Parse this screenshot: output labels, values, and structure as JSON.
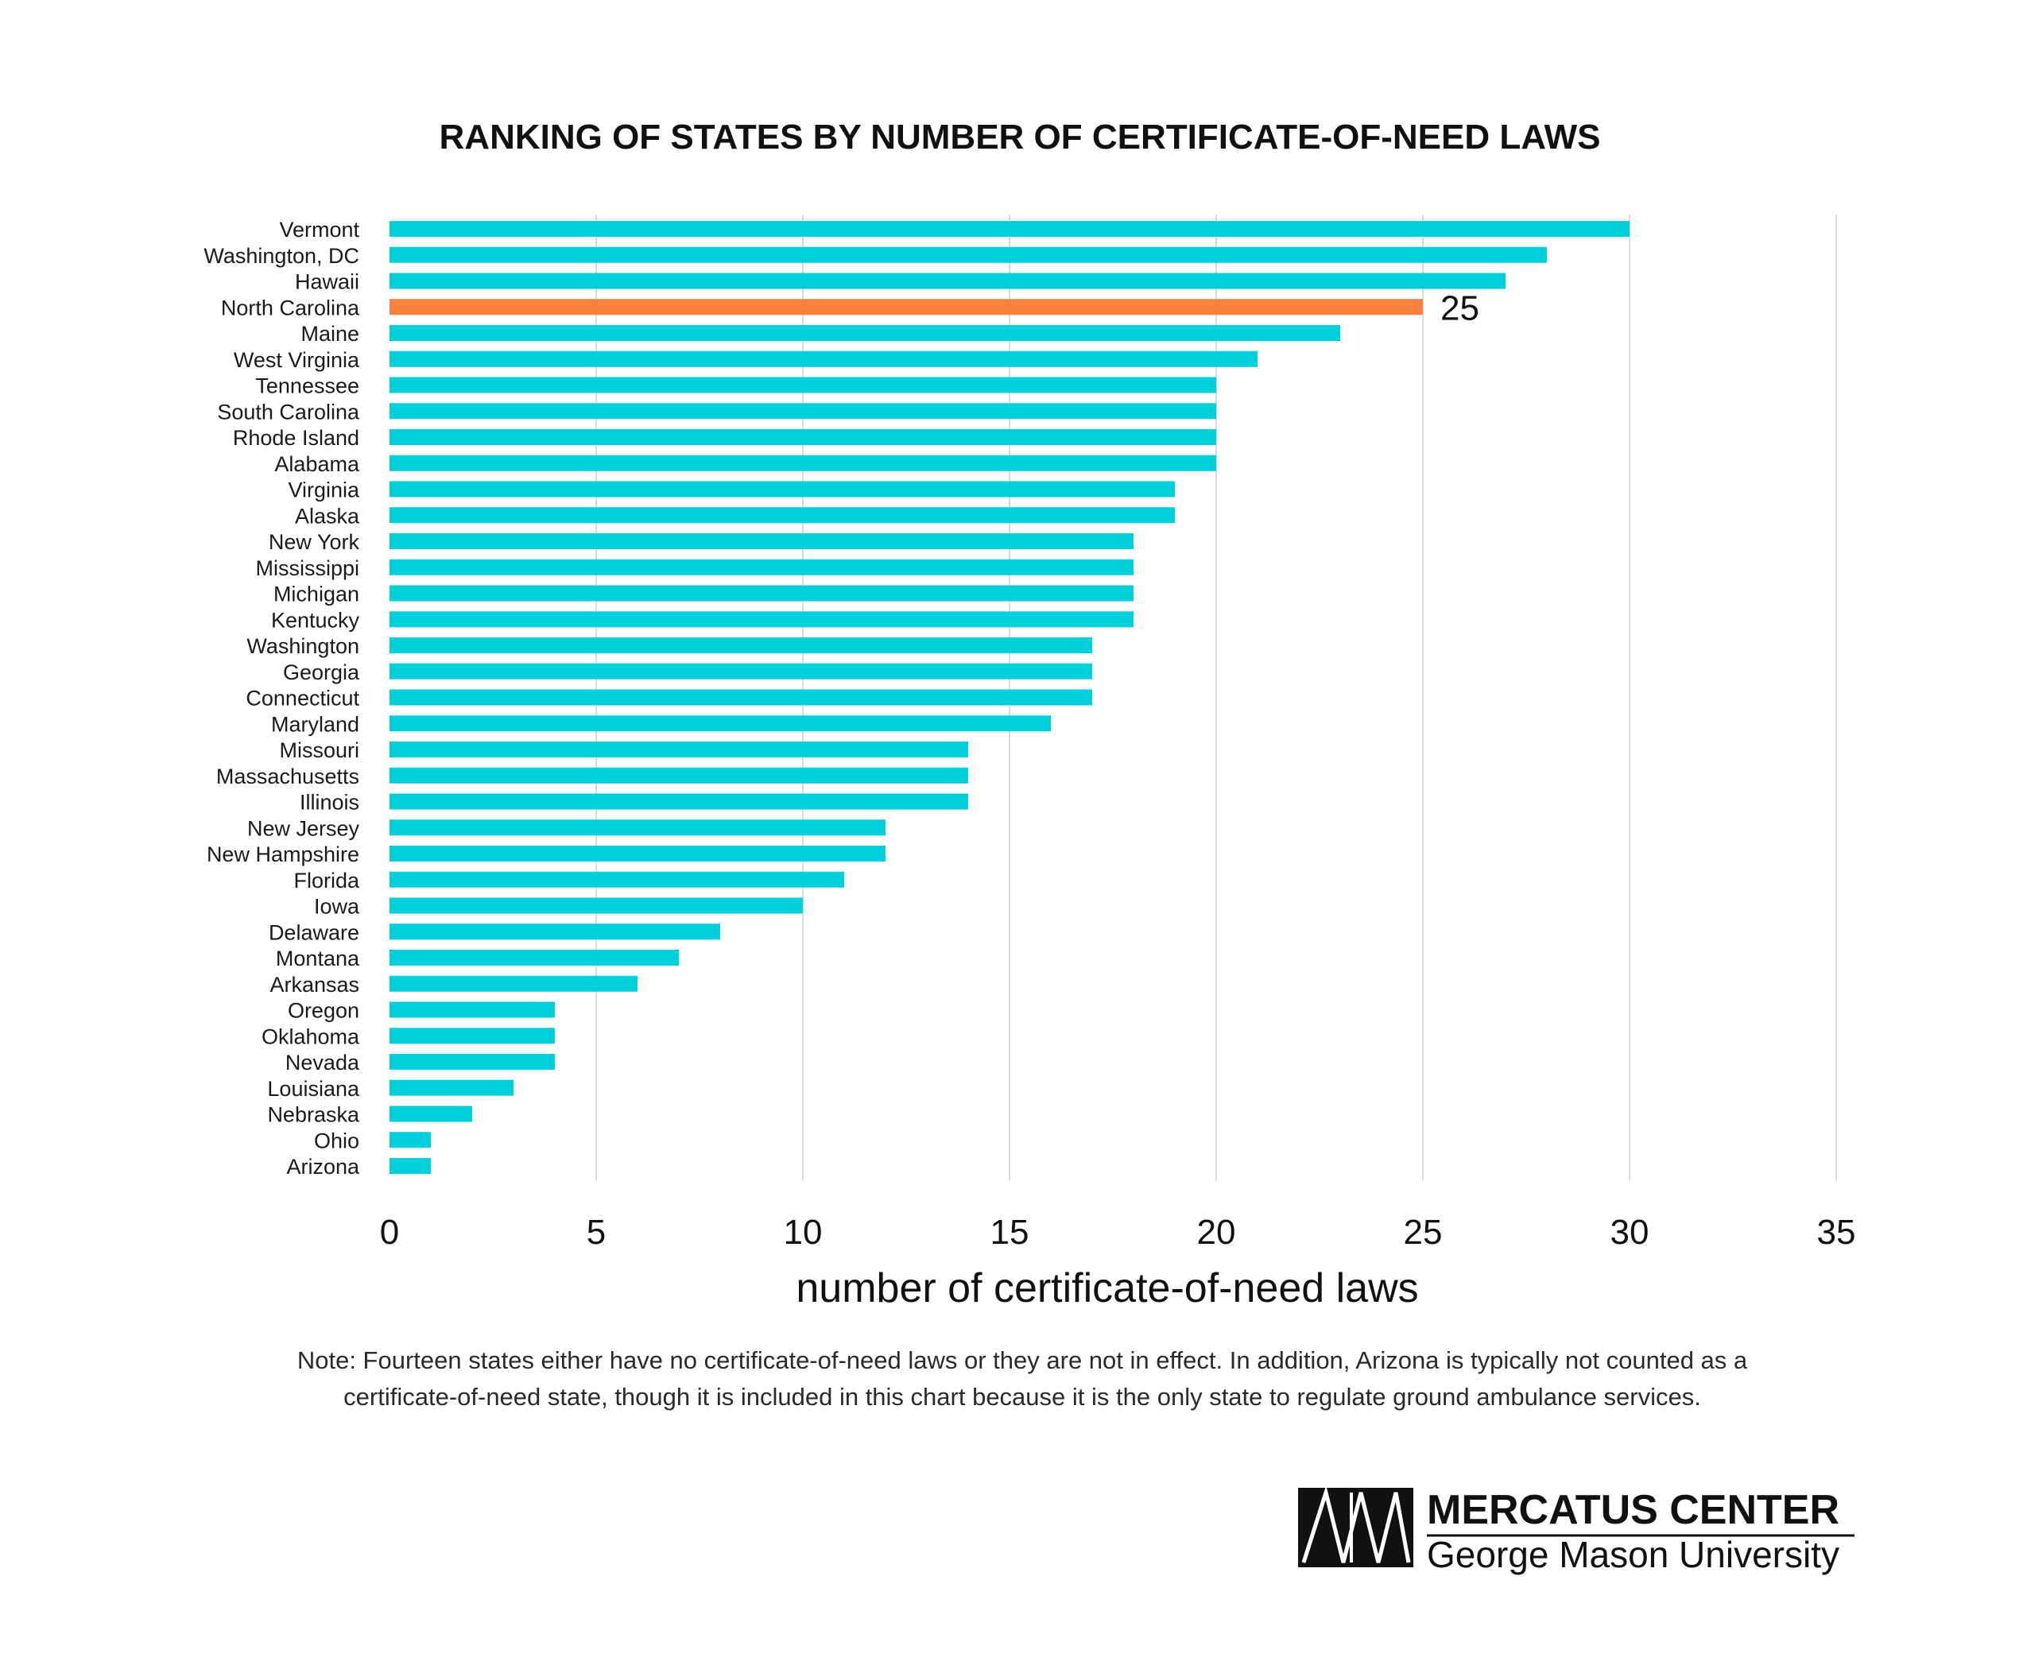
{
  "chart_data": {
    "type": "bar",
    "orientation": "horizontal",
    "title": "RANKING OF STATES BY NUMBER OF CERTIFICATE-OF-NEED LAWS",
    "xlabel": "number of certificate-of-need laws",
    "ylabel": "",
    "xlim": [
      0,
      35
    ],
    "xticks": [
      0,
      5,
      10,
      15,
      20,
      25,
      30,
      35
    ],
    "grid": "vertical",
    "legend": "none",
    "categories": [
      "Vermont",
      "Washington, DC",
      "Hawaii",
      "North Carolina",
      "Maine",
      "West Virginia",
      "Tennessee",
      "South Carolina",
      "Rhode Island",
      "Alabama",
      "Virginia",
      "Alaska",
      "New York",
      "Mississippi",
      "Michigan",
      "Kentucky",
      "Washington",
      "Georgia",
      "Connecticut",
      "Maryland",
      "Missouri",
      "Massachusetts",
      "Illinois",
      "New Jersey",
      "New Hampshire",
      "Florida",
      "Iowa",
      "Delaware",
      "Montana",
      "Arkansas",
      "Oregon",
      "Oklahoma",
      "Nevada",
      "Louisiana",
      "Nebraska",
      "Ohio",
      "Arizona"
    ],
    "values": [
      30,
      28,
      27,
      25,
      23,
      21,
      20,
      20,
      20,
      20,
      19,
      19,
      18,
      18,
      18,
      18,
      17,
      17,
      17,
      16,
      14,
      14,
      14,
      12,
      12,
      11,
      10,
      8,
      7,
      6,
      4,
      4,
      4,
      3,
      2,
      1,
      1
    ],
    "highlight": {
      "category": "North Carolina",
      "label": "25"
    },
    "colors": {
      "bar": "#00cfdc",
      "highlight": "#f7813d",
      "grid": "#d9d9d9"
    }
  },
  "note": {
    "line1": "Note: Fourteen states either have no certificate-of-need laws or they are not in effect. In addition, Arizona is typically not counted as a",
    "line2": "certificate-of-need state, though it is included in this chart because it is the only state to regulate ground ambulance services."
  },
  "logo": {
    "line1": "MERCATUS CENTER",
    "line2": "George Mason University"
  }
}
